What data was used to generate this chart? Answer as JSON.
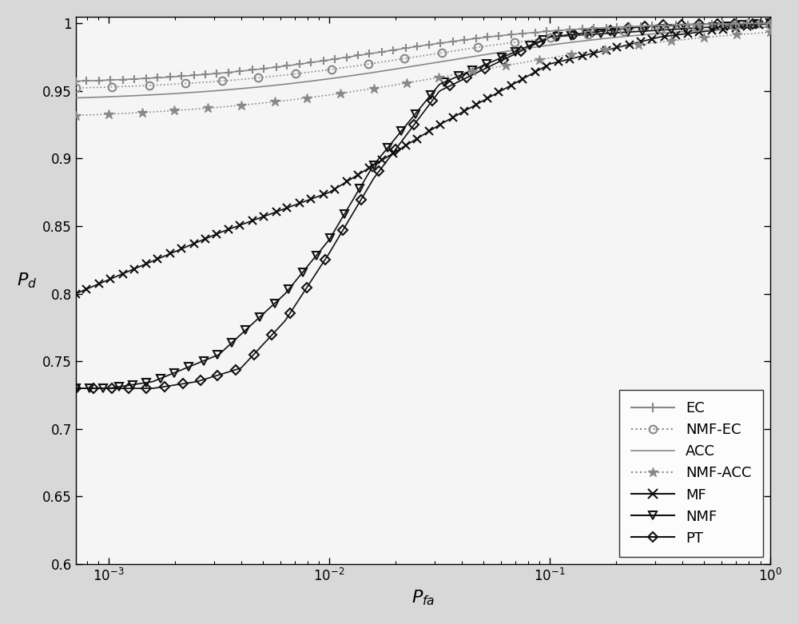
{
  "title": "",
  "xlabel": "P_{fa}",
  "ylabel": "P_d",
  "xlim_min_exp": -3.15,
  "xlim_max_exp": 0,
  "ylim": [
    0.6,
    1.005
  ],
  "background_color": "#ffffff",
  "plot_bg_color": "#f0f0f0",
  "legend_entries": [
    "EC",
    "NMF-EC",
    "ACC",
    "NMF-ACC",
    "MF",
    "NMF",
    "PT"
  ],
  "gray_color": "#888888",
  "black_color": "#111111",
  "yticks": [
    0.6,
    0.65,
    0.7,
    0.75,
    0.8,
    0.85,
    0.9,
    0.95,
    1.0
  ]
}
